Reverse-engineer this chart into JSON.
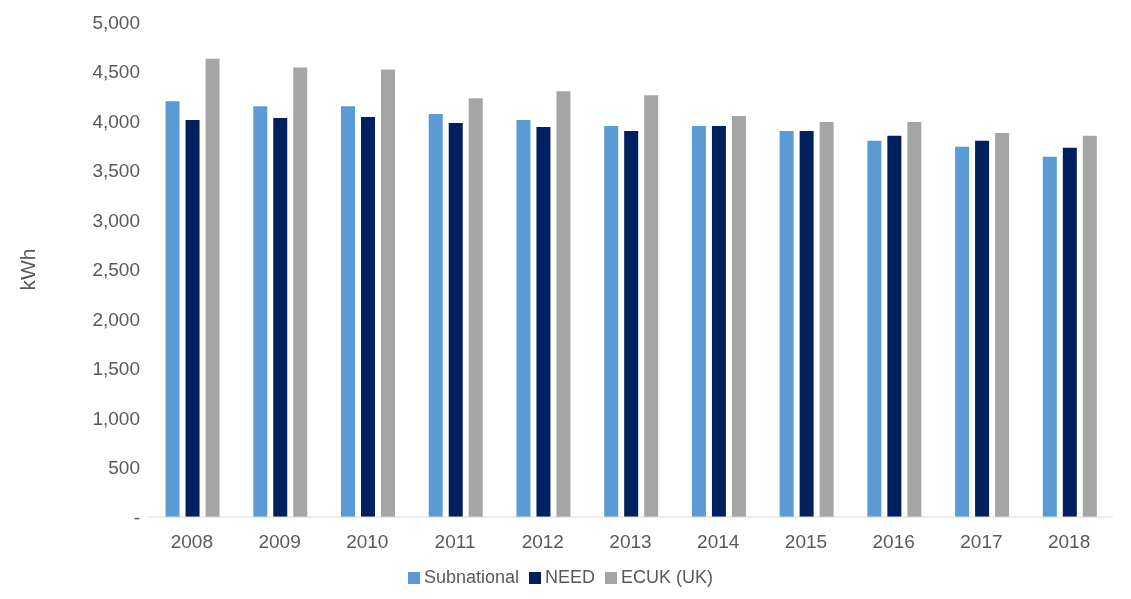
{
  "chart_data": {
    "type": "bar",
    "ylabel": "kWh",
    "categories": [
      "2008",
      "2009",
      "2010",
      "2011",
      "2012",
      "2013",
      "2014",
      "2015",
      "2016",
      "2017",
      "2018"
    ],
    "series": [
      {
        "name": "Subnational",
        "color": "#5b9bd5",
        "values": [
          4200,
          4150,
          4150,
          4070,
          4010,
          3950,
          3950,
          3900,
          3800,
          3740,
          3640
        ]
      },
      {
        "name": "NEED",
        "color": "#002060",
        "values": [
          4010,
          4030,
          4040,
          3980,
          3940,
          3900,
          3950,
          3900,
          3850,
          3800,
          3730
        ]
      },
      {
        "name": "ECUK (UK)",
        "color": "#a5a5a5",
        "values": [
          4630,
          4540,
          4520,
          4230,
          4300,
          4260,
          4050,
          3990,
          3990,
          3880,
          3850
        ]
      }
    ],
    "ylim": [
      0,
      5000
    ],
    "yticks": [
      {
        "value": 0,
        "label": "-"
      },
      {
        "value": 500,
        "label": "500"
      },
      {
        "value": 1000,
        "label": "1,000"
      },
      {
        "value": 1500,
        "label": "1,500"
      },
      {
        "value": 2000,
        "label": "2,000"
      },
      {
        "value": 2500,
        "label": "2,500"
      },
      {
        "value": 3000,
        "label": "3,000"
      },
      {
        "value": 3500,
        "label": "3,500"
      },
      {
        "value": 4000,
        "label": "4,000"
      },
      {
        "value": 4500,
        "label": "4,500"
      },
      {
        "value": 5000,
        "label": "5,000"
      }
    ],
    "legend": "bottom"
  }
}
